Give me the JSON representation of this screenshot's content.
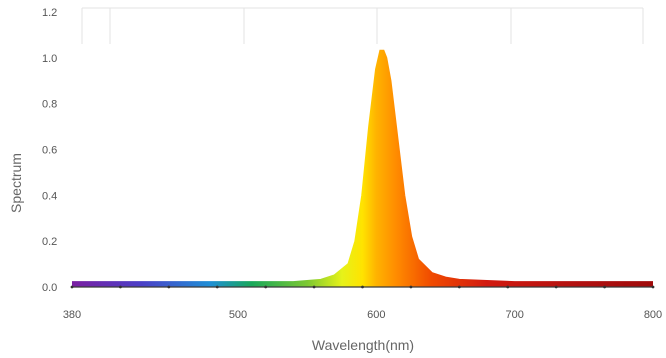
{
  "chart_data": {
    "type": "area",
    "title": "",
    "xlabel": "Wavelength(nm)",
    "ylabel": "Spectrum",
    "xlim": [
      380,
      800
    ],
    "ylim": [
      0.0,
      1.2
    ],
    "x_ticks": [
      "380",
      "500",
      "600",
      "700",
      "800"
    ],
    "y_ticks": [
      "0.0",
      "0.2",
      "0.4",
      "0.6",
      "0.8",
      "1.0",
      "1.2"
    ],
    "grid": "vertical lines only, upper region",
    "fill": "visible-spectrum color gradient under curve",
    "series": [
      {
        "x": [
          380,
          400,
          450,
          500,
          540,
          560,
          570,
          580,
          585,
          590,
          595,
          600,
          603,
          605,
          607,
          610,
          615,
          620,
          625,
          630,
          640,
          650,
          660,
          680,
          700,
          750,
          800
        ],
        "y": [
          0.02,
          0.02,
          0.02,
          0.02,
          0.02,
          0.03,
          0.05,
          0.1,
          0.2,
          0.4,
          0.7,
          0.95,
          1.03,
          1.03,
          1.0,
          0.9,
          0.65,
          0.4,
          0.22,
          0.12,
          0.06,
          0.04,
          0.03,
          0.025,
          0.02,
          0.02,
          0.02
        ]
      }
    ]
  }
}
